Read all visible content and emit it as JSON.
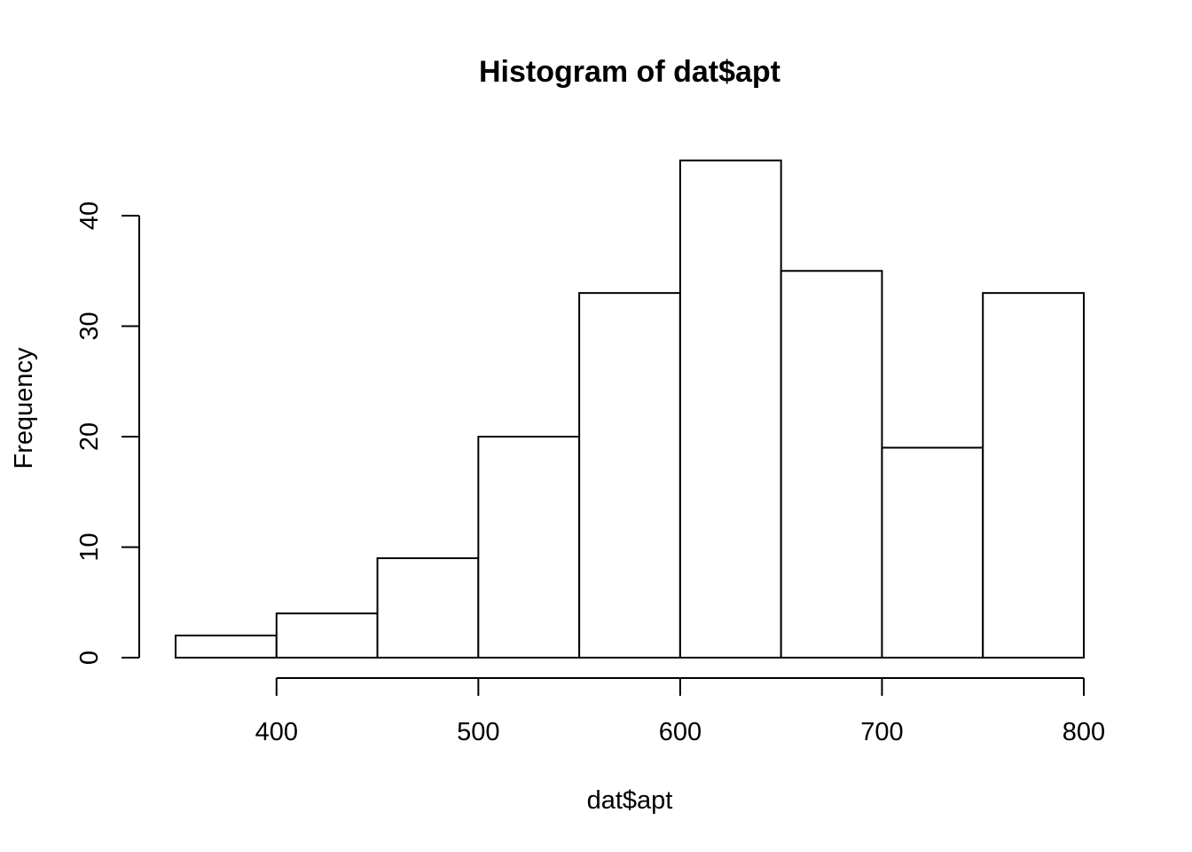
{
  "chart_data": {
    "type": "bar",
    "title": "Histogram of dat$apt",
    "xlabel": "dat$apt",
    "ylabel": "Frequency",
    "bins": [
      {
        "start": 350,
        "end": 400,
        "count": 2
      },
      {
        "start": 400,
        "end": 450,
        "count": 4
      },
      {
        "start": 450,
        "end": 500,
        "count": 9
      },
      {
        "start": 500,
        "end": 550,
        "count": 20
      },
      {
        "start": 550,
        "end": 600,
        "count": 33
      },
      {
        "start": 600,
        "end": 650,
        "count": 45
      },
      {
        "start": 650,
        "end": 700,
        "count": 35
      },
      {
        "start": 700,
        "end": 750,
        "count": 19
      },
      {
        "start": 750,
        "end": 800,
        "count": 33
      }
    ],
    "x_ticks": [
      "400",
      "500",
      "600",
      "700",
      "800"
    ],
    "y_ticks": [
      "0",
      "10",
      "20",
      "30",
      "40"
    ],
    "xlim": [
      350,
      800
    ],
    "ylim": [
      0,
      45
    ],
    "grid": false,
    "colors": {
      "bar_fill": "#ffffff",
      "bar_stroke": "#000000",
      "background": "#ffffff"
    }
  }
}
